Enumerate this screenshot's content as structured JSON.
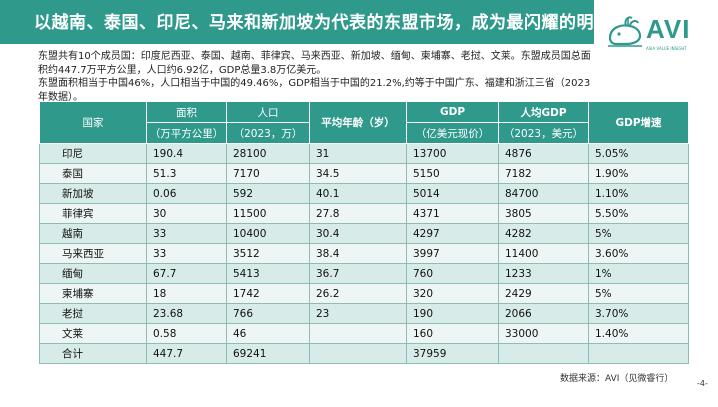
{
  "title": "以越南、泰国、印尼、马来和新加坡为代表的东盟市场，成为最闪耀的明星",
  "logo": {
    "text": "AVI",
    "subtext": "ASIA VALUE INSIGHT"
  },
  "intro": {
    "line1": "东盟共有10个成员国：印度尼西亚、泰国、越南、菲律宾、马来西亚、新加坡、缅甸、柬埔寨、老挝、文莱。东盟成员国总面积约447.7万平方公里，人口约6.92亿，GDP总量3.8万亿美元。",
    "line2": "东盟面积相当于中国46%，人口相当于中国的49.46%，GDP相当于中国的21.2%,约等于中国广东、福建和浙江三省（2023年数据）。"
  },
  "table": {
    "headers": {
      "country": "国家",
      "area_top": "面积",
      "area_bottom": "（万平方公里）",
      "pop_top": "人口",
      "pop_bottom": "（2023，万）",
      "age": "平均年龄（岁）",
      "gdp_top": "GDP",
      "gdp_bottom": "（亿美元现价）",
      "gdppc_top": "人均GDP",
      "gdppc_bottom": "（2023，美元）",
      "growth": "GDP增速"
    },
    "rows": [
      {
        "country": "印尼",
        "area": "190.4",
        "population": "28100",
        "age": "31",
        "gdp": "13700",
        "gdp_per_capita": "4876",
        "growth": "5.05%"
      },
      {
        "country": "泰国",
        "area": "51.3",
        "population": "7170",
        "age": "34.5",
        "gdp": "5150",
        "gdp_per_capita": "7182",
        "growth": "1.90%"
      },
      {
        "country": "新加坡",
        "area": "0.06",
        "population": "592",
        "age": "40.1",
        "gdp": "5014",
        "gdp_per_capita": "84700",
        "growth": "1.10%"
      },
      {
        "country": "菲律宾",
        "area": "30",
        "population": "11500",
        "age": "27.8",
        "gdp": "4371",
        "gdp_per_capita": "3805",
        "growth": "5.50%"
      },
      {
        "country": "越南",
        "area": "33",
        "population": "10400",
        "age": "30.4",
        "gdp": "4297",
        "gdp_per_capita": "4282",
        "growth": "5%"
      },
      {
        "country": "马来西亚",
        "area": "33",
        "population": "3512",
        "age": "38.4",
        "gdp": "3997",
        "gdp_per_capita": "11400",
        "growth": "3.60%"
      },
      {
        "country": "缅甸",
        "area": "67.7",
        "population": "5413",
        "age": "36.7",
        "gdp": "760",
        "gdp_per_capita": "1233",
        "growth": "1%"
      },
      {
        "country": "柬埔寨",
        "area": "18",
        "population": "1742",
        "age": "26.2",
        "gdp": "320",
        "gdp_per_capita": "2429",
        "growth": "5%"
      },
      {
        "country": "老挝",
        "area": "23.68",
        "population": "766",
        "age": "23",
        "gdp": "190",
        "gdp_per_capita": "2066",
        "growth": "3.70%"
      },
      {
        "country": "文莱",
        "area": "0.58",
        "population": "46",
        "age": "",
        "gdp": "160",
        "gdp_per_capita": "33000",
        "growth": "1.40%"
      },
      {
        "country": "合计",
        "area": "447.7",
        "population": "69241",
        "age": "",
        "gdp": "37959",
        "gdp_per_capita": "",
        "growth": ""
      }
    ]
  },
  "source": "数据来源：AVI（见微睿行）",
  "page_number": "-4-",
  "colors": {
    "accent": "#2f9a8c",
    "row_odd": "#d7ebe8",
    "row_even": "#eef6f5"
  }
}
